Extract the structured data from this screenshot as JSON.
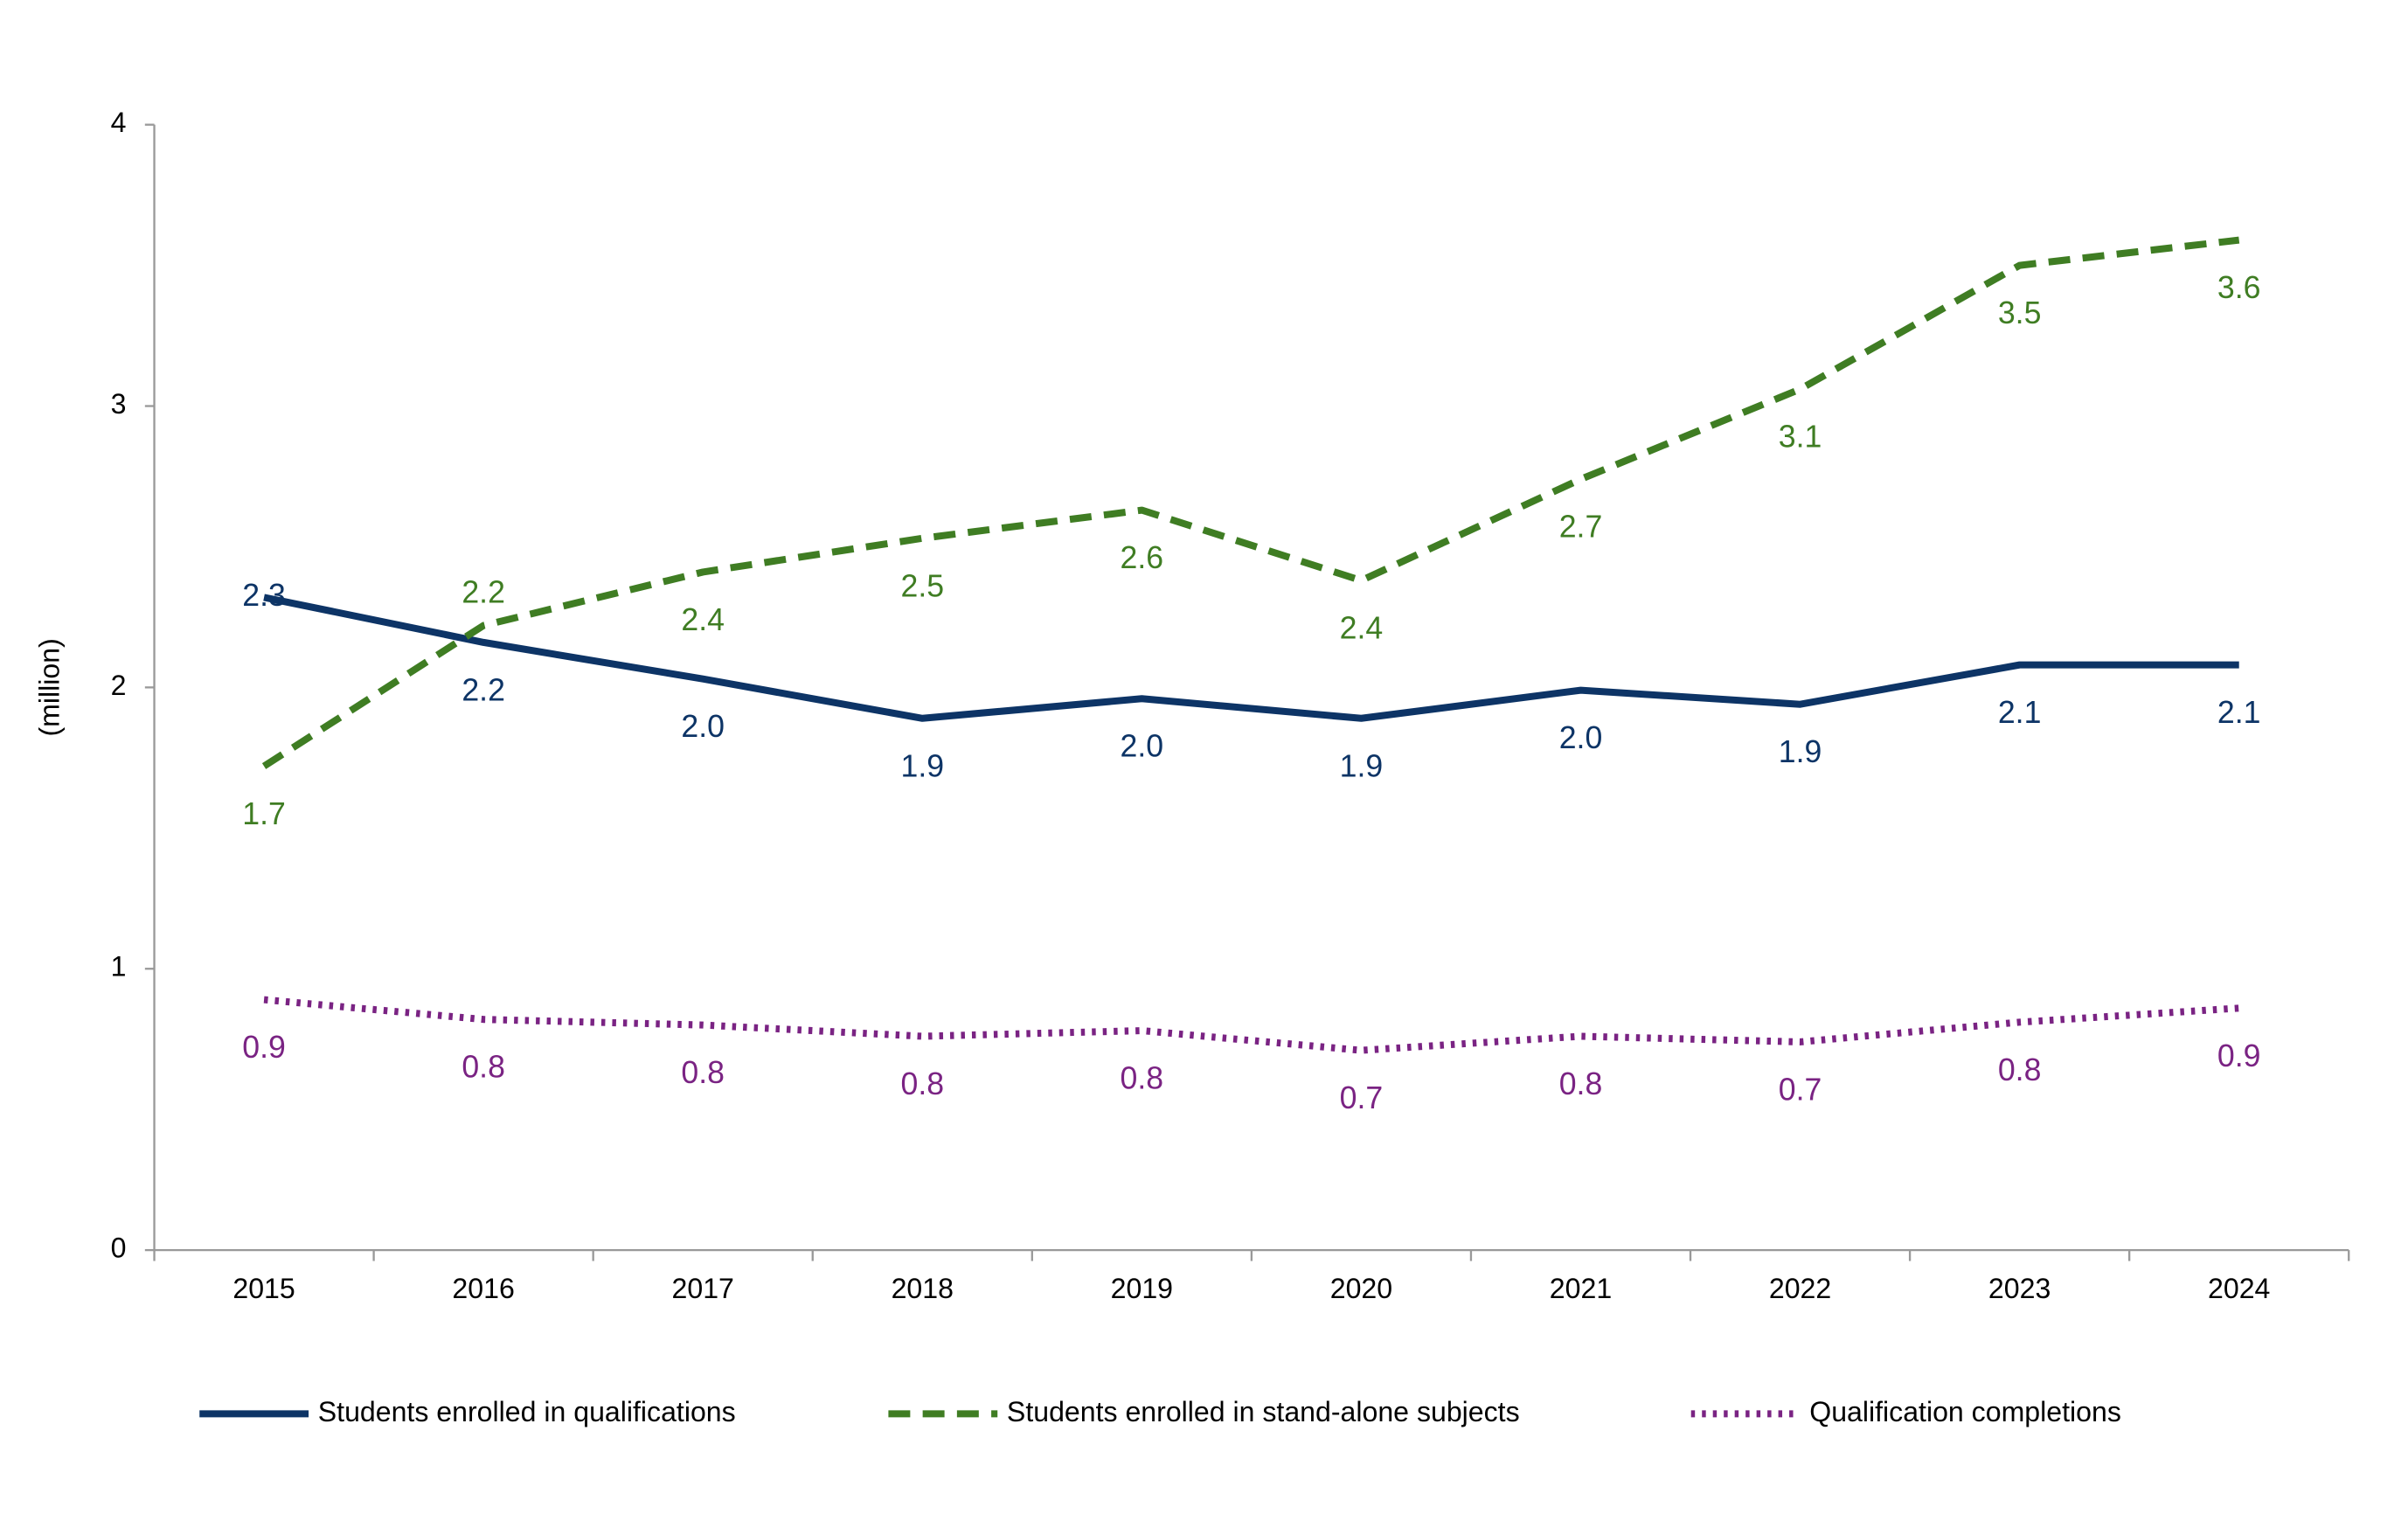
{
  "chart_data": {
    "type": "line",
    "y_label": "(million)",
    "categories": [
      "2015",
      "2016",
      "2017",
      "2018",
      "2019",
      "2020",
      "2021",
      "2022",
      "2023",
      "2024"
    ],
    "ylim": [
      0,
      4
    ],
    "yticks": [
      0,
      1,
      2,
      3,
      4
    ],
    "grid": false,
    "legend": "bottom",
    "series": [
      {
        "name": "Students enrolled in qualifications",
        "color": "#0d3466",
        "style": "solid",
        "values": [
          2.32,
          2.16,
          2.03,
          1.89,
          1.96,
          1.89,
          1.99,
          1.94,
          2.08,
          2.08
        ],
        "value_labels": [
          "2.3",
          "2.2",
          "2.0",
          "1.9",
          "2.0",
          "1.9",
          "2.0",
          "1.9",
          "2.1",
          "2.1"
        ]
      },
      {
        "name": "Students enrolled in stand-alone subjects",
        "color": "#3f7d23",
        "style": "dashed",
        "values": [
          1.72,
          2.22,
          2.41,
          2.53,
          2.63,
          2.38,
          2.74,
          3.06,
          3.5,
          3.59
        ],
        "value_labels": [
          "1.7",
          "2.2",
          "2.4",
          "2.5",
          "2.6",
          "2.4",
          "2.7",
          "3.1",
          "3.5",
          "3.6"
        ]
      },
      {
        "name": "Qualification completions",
        "color": "#7a2383",
        "style": "dotted",
        "values": [
          0.89,
          0.82,
          0.8,
          0.76,
          0.78,
          0.71,
          0.76,
          0.74,
          0.81,
          0.86
        ],
        "value_labels": [
          "0.9",
          "0.8",
          "0.8",
          "0.8",
          "0.8",
          "0.7",
          "0.8",
          "0.7",
          "0.8",
          "0.9"
        ]
      }
    ]
  }
}
